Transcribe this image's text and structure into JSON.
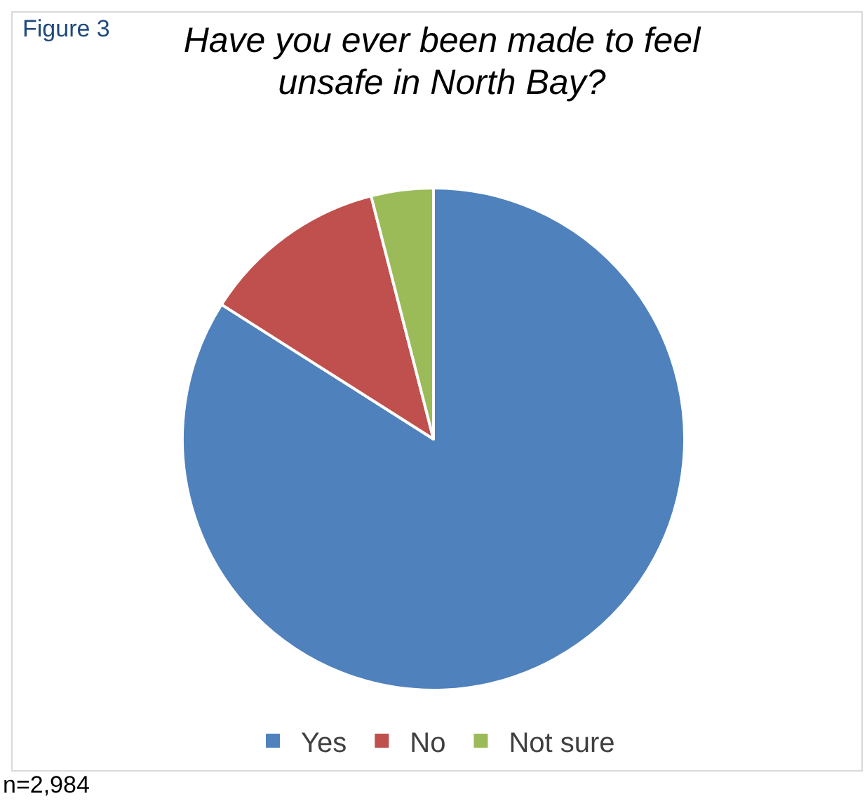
{
  "chart_data": {
    "type": "pie",
    "title": "Have you ever been made to feel unsafe in North Bay?",
    "categories": [
      "Yes",
      "No",
      "Not sure"
    ],
    "values": [
      84,
      12,
      4
    ],
    "colors": [
      "#4f81bd",
      "#c0504d",
      "#9bbb59"
    ],
    "legend": "bottom",
    "annotations": [
      "Figure 3",
      "n=2,984"
    ]
  }
}
